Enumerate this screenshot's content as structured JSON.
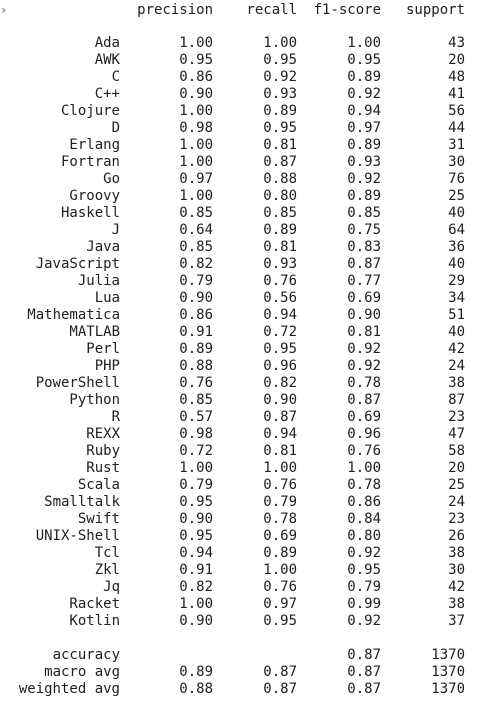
{
  "marker_glyph": "›",
  "header": {
    "label": "",
    "precision": "precision",
    "recall": "recall",
    "f1": "f1-score",
    "support": "support"
  },
  "classes": [
    {
      "label": "Ada",
      "precision": "1.00",
      "recall": "1.00",
      "f1": "1.00",
      "support": "43"
    },
    {
      "label": "AWK",
      "precision": "0.95",
      "recall": "0.95",
      "f1": "0.95",
      "support": "20"
    },
    {
      "label": "C",
      "precision": "0.86",
      "recall": "0.92",
      "f1": "0.89",
      "support": "48"
    },
    {
      "label": "C++",
      "precision": "0.90",
      "recall": "0.93",
      "f1": "0.92",
      "support": "41"
    },
    {
      "label": "Clojure",
      "precision": "1.00",
      "recall": "0.89",
      "f1": "0.94",
      "support": "56"
    },
    {
      "label": "D",
      "precision": "0.98",
      "recall": "0.95",
      "f1": "0.97",
      "support": "44"
    },
    {
      "label": "Erlang",
      "precision": "1.00",
      "recall": "0.81",
      "f1": "0.89",
      "support": "31"
    },
    {
      "label": "Fortran",
      "precision": "1.00",
      "recall": "0.87",
      "f1": "0.93",
      "support": "30"
    },
    {
      "label": "Go",
      "precision": "0.97",
      "recall": "0.88",
      "f1": "0.92",
      "support": "76"
    },
    {
      "label": "Groovy",
      "precision": "1.00",
      "recall": "0.80",
      "f1": "0.89",
      "support": "25"
    },
    {
      "label": "Haskell",
      "precision": "0.85",
      "recall": "0.85",
      "f1": "0.85",
      "support": "40"
    },
    {
      "label": "J",
      "precision": "0.64",
      "recall": "0.89",
      "f1": "0.75",
      "support": "64"
    },
    {
      "label": "Java",
      "precision": "0.85",
      "recall": "0.81",
      "f1": "0.83",
      "support": "36"
    },
    {
      "label": "JavaScript",
      "precision": "0.82",
      "recall": "0.93",
      "f1": "0.87",
      "support": "40"
    },
    {
      "label": "Julia",
      "precision": "0.79",
      "recall": "0.76",
      "f1": "0.77",
      "support": "29"
    },
    {
      "label": "Lua",
      "precision": "0.90",
      "recall": "0.56",
      "f1": "0.69",
      "support": "34"
    },
    {
      "label": "Mathematica",
      "precision": "0.86",
      "recall": "0.94",
      "f1": "0.90",
      "support": "51"
    },
    {
      "label": "MATLAB",
      "precision": "0.91",
      "recall": "0.72",
      "f1": "0.81",
      "support": "40"
    },
    {
      "label": "Perl",
      "precision": "0.89",
      "recall": "0.95",
      "f1": "0.92",
      "support": "42"
    },
    {
      "label": "PHP",
      "precision": "0.88",
      "recall": "0.96",
      "f1": "0.92",
      "support": "24"
    },
    {
      "label": "PowerShell",
      "precision": "0.76",
      "recall": "0.82",
      "f1": "0.78",
      "support": "38"
    },
    {
      "label": "Python",
      "precision": "0.85",
      "recall": "0.90",
      "f1": "0.87",
      "support": "87"
    },
    {
      "label": "R",
      "precision": "0.57",
      "recall": "0.87",
      "f1": "0.69",
      "support": "23"
    },
    {
      "label": "REXX",
      "precision": "0.98",
      "recall": "0.94",
      "f1": "0.96",
      "support": "47"
    },
    {
      "label": "Ruby",
      "precision": "0.72",
      "recall": "0.81",
      "f1": "0.76",
      "support": "58"
    },
    {
      "label": "Rust",
      "precision": "1.00",
      "recall": "1.00",
      "f1": "1.00",
      "support": "20"
    },
    {
      "label": "Scala",
      "precision": "0.79",
      "recall": "0.76",
      "f1": "0.78",
      "support": "25"
    },
    {
      "label": "Smalltalk",
      "precision": "0.95",
      "recall": "0.79",
      "f1": "0.86",
      "support": "24"
    },
    {
      "label": "Swift",
      "precision": "0.90",
      "recall": "0.78",
      "f1": "0.84",
      "support": "23"
    },
    {
      "label": "UNIX-Shell",
      "precision": "0.95",
      "recall": "0.69",
      "f1": "0.80",
      "support": "26"
    },
    {
      "label": "Tcl",
      "precision": "0.94",
      "recall": "0.89",
      "f1": "0.92",
      "support": "38"
    },
    {
      "label": "Zkl",
      "precision": "0.91",
      "recall": "1.00",
      "f1": "0.95",
      "support": "30"
    },
    {
      "label": "Jq",
      "precision": "0.82",
      "recall": "0.76",
      "f1": "0.79",
      "support": "42"
    },
    {
      "label": "Racket",
      "precision": "1.00",
      "recall": "0.97",
      "f1": "0.99",
      "support": "38"
    },
    {
      "label": "Kotlin",
      "precision": "0.90",
      "recall": "0.95",
      "f1": "0.92",
      "support": "37"
    }
  ],
  "summary": [
    {
      "label": "accuracy",
      "precision": "",
      "recall": "",
      "f1": "0.87",
      "support": "1370"
    },
    {
      "label": "macro avg",
      "precision": "0.89",
      "recall": "0.87",
      "f1": "0.87",
      "support": "1370"
    },
    {
      "label": "weighted avg",
      "precision": "0.88",
      "recall": "0.87",
      "f1": "0.87",
      "support": "1370"
    }
  ]
}
